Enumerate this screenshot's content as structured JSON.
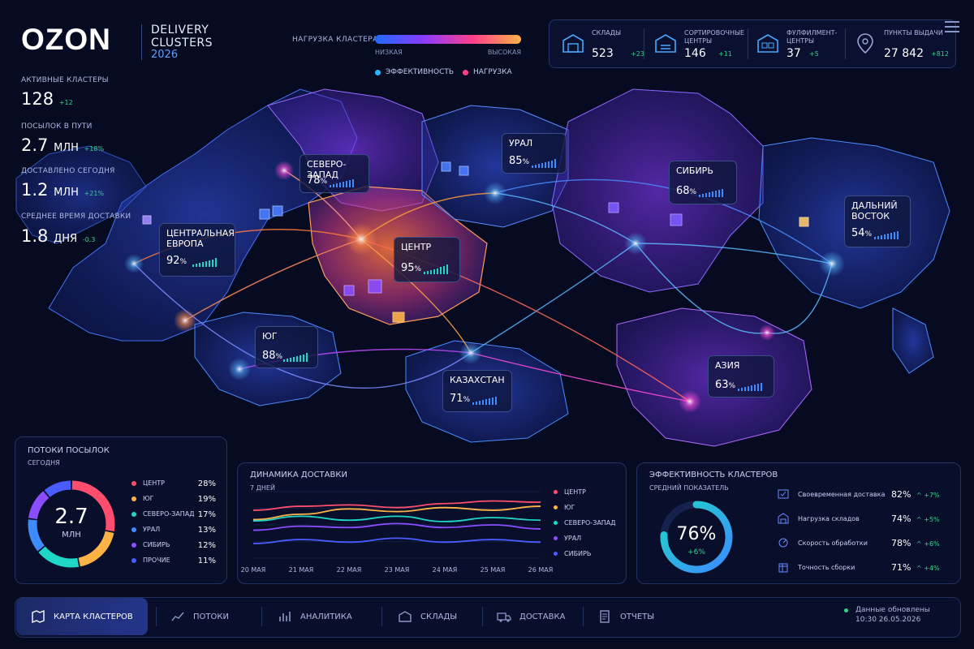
{
  "brand": {
    "logo": "OZON",
    "title_line1": "DELIVERY",
    "title_line2": "CLUSTERS",
    "year": "2026"
  },
  "load_scale": {
    "label": "НАГРУЗКА КЛАСТЕРА",
    "low": "НИЗКАЯ",
    "high": "ВЫСОКАЯ"
  },
  "legend": {
    "efficiency": "ЭФФЕКТИВНОСТЬ",
    "load": "НАГРУЗКА",
    "efficiency_color": "#29b6ff",
    "load_color": "#ff3f8c"
  },
  "top_stats": [
    {
      "label_1": "СКЛАДЫ",
      "label_2": "",
      "value": "523",
      "delta": "+23",
      "icon": "warehouse-icon"
    },
    {
      "label_1": "СОРТИРОВОЧНЫЕ",
      "label_2": "ЦЕНТРЫ",
      "value": "146",
      "delta": "+11",
      "icon": "sorting-center-icon"
    },
    {
      "label_1": "ФУЛФИЛМЕНТ-",
      "label_2": "ЦЕНТРЫ",
      "value": "37",
      "delta": "+5",
      "icon": "fulfillment-icon"
    },
    {
      "label_1": "ПУНКТЫ ВЫДАЧИ",
      "label_2": "",
      "value": "27 842",
      "delta": "+812",
      "icon": "pickup-point-icon"
    }
  ],
  "kpis": [
    {
      "label": "АКТИВНЫЕ КЛАСТЕРЫ",
      "value": "128",
      "unit": "",
      "delta": "+12"
    },
    {
      "label": "ПОСЫЛОК В ПУТИ",
      "value": "2.7",
      "unit": "МЛН",
      "delta": "+18%"
    },
    {
      "label": "ДОСТАВЛЕНО СЕГОДНЯ",
      "value": "1.2",
      "unit": "МЛН",
      "delta": "+21%"
    },
    {
      "label": "СРЕДНЕЕ ВРЕМЯ ДОСТАВКИ",
      "value": "1.8",
      "unit": "ДНЯ",
      "delta": "-0.3"
    }
  ],
  "clusters": [
    {
      "name_1": "ЦЕНТРАЛЬНАЯ",
      "name_2": "ЕВРОПА",
      "value": "92",
      "unit": "%"
    },
    {
      "name_1": "СЕВЕРО-ЗАПАД",
      "name_2": "",
      "value": "78",
      "unit": "%"
    },
    {
      "name_1": "ЦЕНТР",
      "name_2": "",
      "value": "95",
      "unit": "%"
    },
    {
      "name_1": "УРАЛ",
      "name_2": "",
      "value": "85",
      "unit": "%"
    },
    {
      "name_1": "СИБИРЬ",
      "name_2": "",
      "value": "68",
      "unit": "%"
    },
    {
      "name_1": "ДАЛЬНИЙ",
      "name_2": "ВОСТОК",
      "value": "54",
      "unit": "%"
    },
    {
      "name_1": "ЮГ",
      "name_2": "",
      "value": "88",
      "unit": "%"
    },
    {
      "name_1": "КАЗАХСТАН",
      "name_2": "",
      "value": "71",
      "unit": "%"
    },
    {
      "name_1": "АЗИЯ",
      "name_2": "",
      "value": "63",
      "unit": "%"
    }
  ],
  "flows": {
    "title": "ПОТОКИ ПОСЫЛОК",
    "subtitle": "СЕГОДНЯ",
    "total_value": "2.7",
    "total_unit": "МЛН",
    "items": [
      {
        "name": "ЦЕНТР",
        "percent": "28%",
        "share": 28,
        "color": "#ff4d6d"
      },
      {
        "name": "ЮГ",
        "percent": "19%",
        "share": 19,
        "color": "#ffb347"
      },
      {
        "name": "СЕВЕРО-ЗАПАД",
        "percent": "17%",
        "share": 17,
        "color": "#20d6c7"
      },
      {
        "name": "УРАЛ",
        "percent": "13%",
        "share": 13,
        "color": "#3d8bff"
      },
      {
        "name": "СИБИРЬ",
        "percent": "12%",
        "share": 12,
        "color": "#8a4dff"
      },
      {
        "name": "ПРОЧИЕ",
        "percent": "11%",
        "share": 11,
        "color": "#4a5cff"
      }
    ]
  },
  "dynamics": {
    "title": "ДИНАМИКА ДОСТАВКИ",
    "subtitle": "7 ДНЕЙ"
  },
  "chart_data": {
    "type": "line",
    "title": "ДИНАМИКА ДОСТАВКИ",
    "categories": [
      "20 МАЯ",
      "21 МАЯ",
      "22 МАЯ",
      "23 МАЯ",
      "24 МАЯ",
      "25 МАЯ",
      "26 МАЯ"
    ],
    "ylim": [
      0,
      100
    ],
    "grid": true,
    "legend_position": "right",
    "series": [
      {
        "name": "ЦЕНТР",
        "color": "#ff4d6d",
        "values": [
          72,
          78,
          80,
          76,
          82,
          86,
          84
        ]
      },
      {
        "name": "ЮГ",
        "color": "#ffb347",
        "values": [
          58,
          66,
          74,
          70,
          76,
          72,
          78
        ]
      },
      {
        "name": "СЕВЕРО-ЗАПАД",
        "color": "#20d6c7",
        "values": [
          56,
          63,
          57,
          63,
          55,
          61,
          57
        ]
      },
      {
        "name": "УРАЛ",
        "color": "#8a4dff",
        "values": [
          42,
          48,
          46,
          52,
          46,
          50,
          44
        ]
      },
      {
        "name": "СИБИРЬ",
        "color": "#4a5cff",
        "values": [
          22,
          28,
          24,
          30,
          24,
          28,
          24
        ]
      }
    ]
  },
  "efficiency": {
    "title": "ЭФФЕКТИВНОСТЬ КЛАСТЕРОВ",
    "subtitle": "СРЕДНИЙ ПОКАЗАТЕЛЬ",
    "value": "76%",
    "fraction": 0.76,
    "delta": "+6%",
    "rows": [
      {
        "name": "Своевременная доставка",
        "value": "82%",
        "delta": "+7%",
        "icon": "on-time-icon"
      },
      {
        "name": "Нагрузка складов",
        "value": "74%",
        "delta": "+5%",
        "icon": "warehouse-load-icon"
      },
      {
        "name": "Скорость обработки",
        "value": "78%",
        "delta": "+6%",
        "icon": "processing-speed-icon"
      },
      {
        "name": "Точность сборки",
        "value": "71%",
        "delta": "+4%",
        "icon": "assembly-accuracy-icon"
      }
    ]
  },
  "nav": [
    {
      "label": "КАРТА КЛАСТЕРОВ",
      "icon": "map-icon",
      "active": true
    },
    {
      "label": "ПОТОКИ",
      "icon": "flows-icon",
      "active": false
    },
    {
      "label": "АНАЛИТИКА",
      "icon": "analytics-icon",
      "active": false
    },
    {
      "label": "СКЛАДЫ",
      "icon": "warehouses-icon",
      "active": false
    },
    {
      "label": "ДОСТАВКА",
      "icon": "truck-icon",
      "active": false
    },
    {
      "label": "ОТЧЕТЫ",
      "icon": "reports-icon",
      "active": false
    }
  ],
  "updated": {
    "label": "Данные обновлены",
    "time": "10:30 26.05.2026"
  }
}
